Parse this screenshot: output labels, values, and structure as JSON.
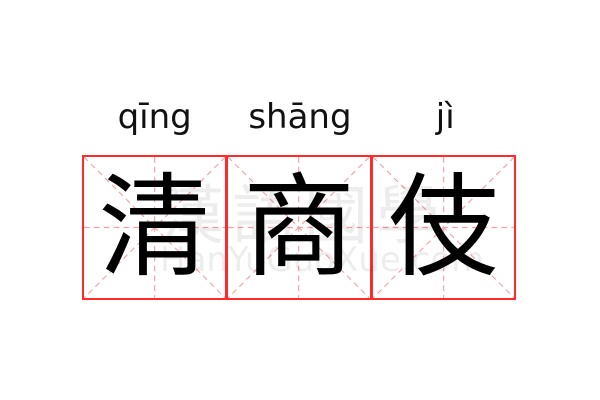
{
  "word": {
    "characters": [
      "清",
      "商",
      "伎"
    ],
    "pinyin": [
      "qīng",
      "shāng",
      "jì"
    ]
  },
  "watermark": {
    "chinese": "漢語國學",
    "latin": "HanYuGuoXue.com"
  },
  "colors": {
    "border": "#ff2b2b",
    "guide": "#f4a0a0",
    "text": "#000000"
  }
}
